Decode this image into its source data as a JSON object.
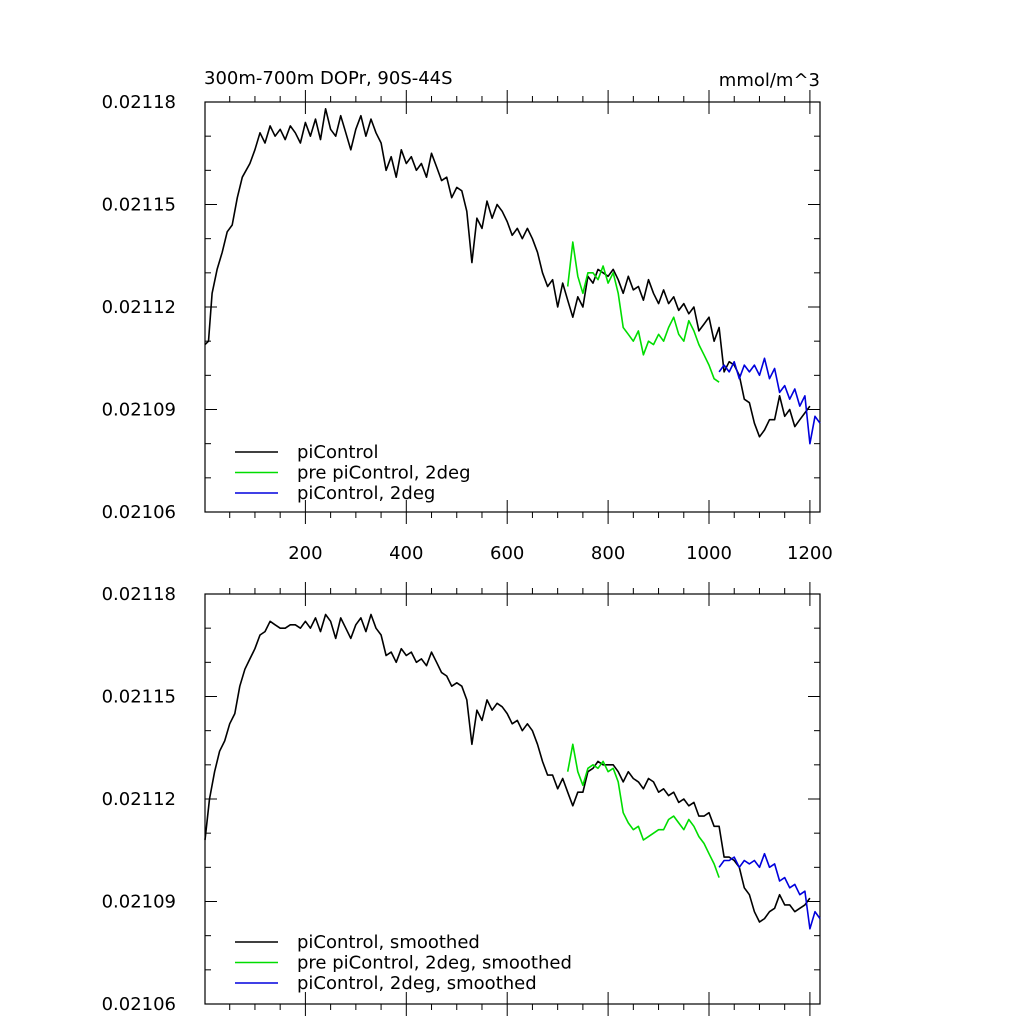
{
  "chart_data": [
    {
      "type": "line",
      "title": "300m-700m DOPr, 90S-44S",
      "units": "mmol/m^3",
      "xlim": [
        1,
        1220
      ],
      "ylim": [
        0.02106,
        0.02118
      ],
      "xticks": [
        200,
        400,
        600,
        800,
        1000,
        1200
      ],
      "xtick_labels": [
        "200",
        "400",
        "600",
        "800",
        "1000",
        "1200"
      ],
      "yticks": [
        0.02106,
        0.02109,
        0.02112,
        0.02115,
        0.02118
      ],
      "ytick_labels": [
        "0.02106",
        "0.02109",
        "0.02112",
        "0.02115",
        "0.02118"
      ],
      "legend": [
        "piControl",
        "pre piControl, 2deg",
        "piControl, 2deg"
      ],
      "series": [
        {
          "name": "piControl",
          "color": "#000000",
          "x": [
            1,
            8,
            15,
            25,
            35,
            45,
            55,
            65,
            75,
            90,
            100,
            110,
            120,
            130,
            140,
            150,
            160,
            170,
            180,
            190,
            200,
            210,
            220,
            230,
            240,
            250,
            260,
            270,
            280,
            290,
            300,
            310,
            320,
            330,
            340,
            350,
            360,
            370,
            380,
            390,
            400,
            410,
            420,
            430,
            440,
            450,
            460,
            470,
            480,
            490,
            500,
            510,
            520,
            530,
            540,
            550,
            560,
            570,
            580,
            590,
            600,
            610,
            620,
            630,
            640,
            650,
            660,
            670,
            680,
            690,
            700,
            710,
            720,
            730,
            740,
            750,
            760,
            770,
            780,
            790,
            800,
            810,
            820,
            830,
            840,
            850,
            860,
            870,
            880,
            890,
            900,
            910,
            920,
            930,
            940,
            950,
            960,
            970,
            980,
            990,
            1000,
            1010,
            1020,
            1030,
            1040,
            1050,
            1060,
            1070,
            1080,
            1090,
            1100,
            1110,
            1120,
            1130,
            1140,
            1150,
            1160,
            1170,
            1180,
            1190,
            1200
          ],
          "values": [
            0.021109,
            0.02111,
            0.021124,
            0.021131,
            0.021136,
            0.021142,
            0.021144,
            0.021152,
            0.021158,
            0.021162,
            0.021166,
            0.021171,
            0.021168,
            0.021173,
            0.02117,
            0.021172,
            0.021169,
            0.021173,
            0.021171,
            0.021168,
            0.021174,
            0.02117,
            0.021175,
            0.021169,
            0.021178,
            0.021172,
            0.02117,
            0.021176,
            0.021171,
            0.021166,
            0.021172,
            0.021176,
            0.02117,
            0.021175,
            0.021171,
            0.021168,
            0.02116,
            0.021164,
            0.021158,
            0.021166,
            0.021162,
            0.021164,
            0.02116,
            0.021162,
            0.021158,
            0.021165,
            0.021161,
            0.021157,
            0.021158,
            0.021152,
            0.021155,
            0.021154,
            0.021148,
            0.021133,
            0.021146,
            0.021143,
            0.021151,
            0.021146,
            0.02115,
            0.021148,
            0.021145,
            0.021141,
            0.021143,
            0.02114,
            0.021143,
            0.02114,
            0.021136,
            0.02113,
            0.021126,
            0.021128,
            0.02112,
            0.021127,
            0.021122,
            0.021117,
            0.021123,
            0.02112,
            0.021129,
            0.021127,
            0.021131,
            0.02113,
            0.021129,
            0.021131,
            0.021128,
            0.021124,
            0.021129,
            0.021125,
            0.021126,
            0.021122,
            0.021128,
            0.021124,
            0.021121,
            0.021125,
            0.021121,
            0.021123,
            0.021119,
            0.021121,
            0.021118,
            0.02112,
            0.021113,
            0.021115,
            0.021117,
            0.02111,
            0.021114,
            0.021101,
            0.021104,
            0.021103,
            0.0211,
            0.021093,
            0.021092,
            0.021086,
            0.021082,
            0.021084,
            0.021087,
            0.021087,
            0.021094,
            0.021088,
            0.02109,
            0.021085,
            0.021087,
            0.021089,
            0.021091
          ]
        },
        {
          "name": "pre piControl, 2deg",
          "color": "#00dd00",
          "x": [
            720,
            730,
            740,
            750,
            760,
            770,
            780,
            790,
            800,
            810,
            820,
            830,
            840,
            850,
            860,
            870,
            880,
            890,
            900,
            910,
            920,
            930,
            940,
            950,
            960,
            970,
            980,
            990,
            1000,
            1010,
            1020
          ],
          "values": [
            0.021126,
            0.021139,
            0.021129,
            0.021124,
            0.02113,
            0.02113,
            0.021128,
            0.021132,
            0.021127,
            0.02113,
            0.021124,
            0.021114,
            0.021112,
            0.02111,
            0.021113,
            0.021106,
            0.02111,
            0.021109,
            0.021112,
            0.02111,
            0.021114,
            0.021117,
            0.021112,
            0.02111,
            0.021116,
            0.021113,
            0.021109,
            0.021106,
            0.021103,
            0.021099,
            0.021098
          ]
        },
        {
          "name": "piControl, 2deg",
          "color": "#0000dd",
          "x": [
            1020,
            1030,
            1040,
            1050,
            1060,
            1070,
            1080,
            1090,
            1100,
            1110,
            1120,
            1130,
            1140,
            1150,
            1160,
            1170,
            1180,
            1190,
            1200,
            1210,
            1220
          ],
          "values": [
            0.021101,
            0.021103,
            0.021101,
            0.021104,
            0.021099,
            0.021103,
            0.021101,
            0.021103,
            0.0211,
            0.021105,
            0.021099,
            0.021102,
            0.021095,
            0.021097,
            0.021093,
            0.021096,
            0.021091,
            0.021094,
            0.02108,
            0.021088,
            0.021086
          ]
        }
      ]
    },
    {
      "type": "line",
      "title": "",
      "ylim": [
        0.02106,
        0.02118
      ],
      "xlim": [
        1,
        1220
      ],
      "yticks": [
        0.02106,
        0.02109,
        0.02112,
        0.02115,
        0.02118
      ],
      "ytick_labels": [
        "0.02106",
        "0.02109",
        "0.02112",
        "0.02115",
        "0.02118"
      ],
      "legend": [
        "piControl, smoothed",
        "pre piControl, 2deg, smoothed",
        "piControl, 2deg, smoothed"
      ],
      "series": [
        {
          "name": "piControl, smoothed",
          "color": "#000000",
          "x": [
            1,
            10,
            20,
            30,
            40,
            50,
            60,
            70,
            80,
            90,
            100,
            110,
            120,
            130,
            140,
            150,
            160,
            170,
            180,
            190,
            200,
            210,
            220,
            230,
            240,
            250,
            260,
            270,
            280,
            290,
            300,
            310,
            320,
            330,
            340,
            350,
            360,
            370,
            380,
            390,
            400,
            410,
            420,
            430,
            440,
            450,
            460,
            470,
            480,
            490,
            500,
            510,
            520,
            530,
            540,
            550,
            560,
            570,
            580,
            590,
            600,
            610,
            620,
            630,
            640,
            650,
            660,
            670,
            680,
            690,
            700,
            710,
            720,
            730,
            740,
            750,
            760,
            770,
            780,
            790,
            800,
            810,
            820,
            830,
            840,
            850,
            860,
            870,
            880,
            890,
            900,
            910,
            920,
            930,
            940,
            950,
            960,
            970,
            980,
            990,
            1000,
            1010,
            1020,
            1030,
            1040,
            1050,
            1060,
            1070,
            1080,
            1090,
            1100,
            1110,
            1120,
            1130,
            1140,
            1150,
            1160,
            1170,
            1180,
            1190,
            1200
          ],
          "values": [
            0.021108,
            0.02112,
            0.021128,
            0.021134,
            0.021137,
            0.021142,
            0.021145,
            0.021153,
            0.021158,
            0.021161,
            0.021164,
            0.021168,
            0.021169,
            0.021172,
            0.021171,
            0.02117,
            0.02117,
            0.021171,
            0.021171,
            0.02117,
            0.021172,
            0.02117,
            0.021173,
            0.021169,
            0.021174,
            0.021172,
            0.021167,
            0.021173,
            0.02117,
            0.021167,
            0.021171,
            0.021173,
            0.021169,
            0.021174,
            0.02117,
            0.021168,
            0.021162,
            0.021163,
            0.02116,
            0.021164,
            0.021162,
            0.021163,
            0.02116,
            0.021161,
            0.021159,
            0.021163,
            0.02116,
            0.021157,
            0.021156,
            0.021153,
            0.021154,
            0.021153,
            0.021149,
            0.021136,
            0.021146,
            0.021143,
            0.021149,
            0.021146,
            0.021148,
            0.021147,
            0.021145,
            0.021142,
            0.021143,
            0.02114,
            0.021142,
            0.02114,
            0.021136,
            0.021131,
            0.021127,
            0.021127,
            0.021123,
            0.021126,
            0.021122,
            0.021118,
            0.021122,
            0.021122,
            0.021128,
            0.021129,
            0.021131,
            0.02113,
            0.02113,
            0.02113,
            0.021128,
            0.021125,
            0.021128,
            0.021126,
            0.021125,
            0.021123,
            0.021126,
            0.021125,
            0.021122,
            0.021123,
            0.021121,
            0.021122,
            0.021119,
            0.02112,
            0.021118,
            0.021119,
            0.021115,
            0.021115,
            0.021116,
            0.021112,
            0.021112,
            0.021103,
            0.021103,
            0.021102,
            0.0211,
            0.021094,
            0.021092,
            0.021087,
            0.021084,
            0.021085,
            0.021087,
            0.021088,
            0.021092,
            0.021089,
            0.021089,
            0.021087,
            0.021088,
            0.021089,
            0.021091
          ]
        },
        {
          "name": "pre piControl, 2deg, smoothed",
          "color": "#00dd00",
          "x": [
            720,
            730,
            740,
            750,
            760,
            770,
            780,
            790,
            800,
            810,
            820,
            830,
            840,
            850,
            860,
            870,
            880,
            890,
            900,
            910,
            920,
            930,
            940,
            950,
            960,
            970,
            980,
            990,
            1000,
            1010,
            1020
          ],
          "values": [
            0.021128,
            0.021136,
            0.021128,
            0.021124,
            0.021129,
            0.02113,
            0.021129,
            0.021131,
            0.021128,
            0.021129,
            0.021125,
            0.021116,
            0.021113,
            0.021111,
            0.021112,
            0.021108,
            0.021109,
            0.02111,
            0.021111,
            0.021111,
            0.021114,
            0.021115,
            0.021113,
            0.021111,
            0.021114,
            0.021112,
            0.021109,
            0.021107,
            0.021104,
            0.021101,
            0.021097
          ]
        },
        {
          "name": "piControl, 2deg, smoothed",
          "color": "#0000dd",
          "x": [
            1020,
            1030,
            1040,
            1050,
            1060,
            1070,
            1080,
            1090,
            1100,
            1110,
            1120,
            1130,
            1140,
            1150,
            1160,
            1170,
            1180,
            1190,
            1200,
            1210,
            1220
          ],
          "values": [
            0.0211,
            0.021102,
            0.021102,
            0.021103,
            0.0211,
            0.021102,
            0.021101,
            0.021102,
            0.0211,
            0.021104,
            0.0211,
            0.021101,
            0.021096,
            0.021097,
            0.021094,
            0.021095,
            0.021092,
            0.021093,
            0.021082,
            0.021087,
            0.021085
          ]
        }
      ]
    }
  ]
}
